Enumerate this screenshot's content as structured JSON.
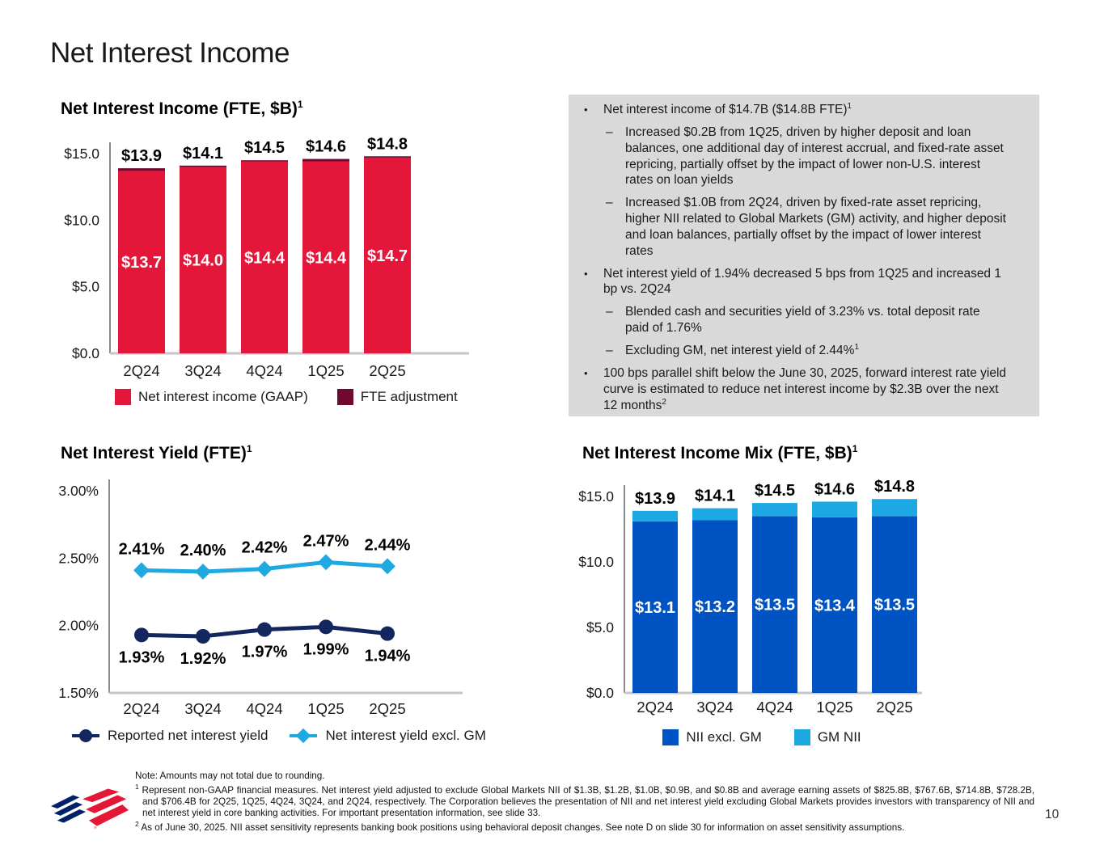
{
  "slide": {
    "title": "Net Interest Income"
  },
  "page_number": "10",
  "colors": {
    "gaap_red": "#E4173B",
    "fte_burgundy": "#70092F",
    "nii_excl_gm_blue": "#0053C2",
    "gm_nii_light_blue": "#1CA8E3",
    "reported_yield_navy": "#14265E",
    "yield_excl_gm_blue": "#20A8E0",
    "commentary_bg": "#D9D9D9",
    "logo_blue": "#012169",
    "logo_red": "#E31837"
  },
  "commentary": {
    "bullet_char": "•",
    "dash_char": "–",
    "items": [
      {
        "type": "bullet",
        "text": "Net interest income of $14.7B ($14.8B FTE)",
        "sup": "1"
      },
      {
        "type": "sub",
        "text": "Increased $0.2B from 1Q25, driven by higher deposit and loan balances, one additional day of interest accrual, and fixed-rate asset repricing, partially offset by the impact of lower non-U.S. interest rates on loan yields",
        "sup": ""
      },
      {
        "type": "sub",
        "text": "Increased $1.0B from 2Q24, driven by fixed-rate asset repricing, higher NII related to Global Markets (GM) activity, and higher deposit and loan balances, partially offset by the impact of lower interest rates",
        "sup": ""
      },
      {
        "type": "bullet",
        "text": "Net interest yield of 1.94% decreased 5 bps from 1Q25 and increased 1 bp vs. 2Q24",
        "sup": ""
      },
      {
        "type": "sub",
        "text": "Blended cash and securities yield of 3.23% vs. total deposit rate paid of 1.76%",
        "sup": ""
      },
      {
        "type": "sub",
        "text": "Excluding GM, net interest yield of 2.44%",
        "sup": "1"
      },
      {
        "type": "bullet",
        "text": "100 bps parallel shift below the June 30, 2025, forward interest rate yield curve is estimated to reduce net interest income by $2.3B over the next 12 months",
        "sup": "2"
      }
    ]
  },
  "footnotes": {
    "note": "Note: Amounts may not total due to rounding.",
    "fn1": {
      "sup": "1",
      "text": "Represent non-GAAP financial measures. Net interest yield adjusted to exclude Global Markets NII of $1.3B, $1.2B, $1.0B, $0.9B, and $0.8B and average earning assets of $825.8B, $767.6B, $714.8B, $728.2B, and $706.4B for 2Q25, 1Q25, 4Q24, 3Q24, and 2Q24, respectively. The Corporation believes the presentation of NII and net interest yield excluding Global Markets provides investors with transparency of NII and net interest yield in core banking activities. For important presentation information, see slide 33."
    },
    "fn2": {
      "sup": "2",
      "text": "As of June 30, 2025. NII asset sensitivity represents banking book positions using behavioral deposit changes. See note D on slide 30 for information on asset sensitivity assumptions."
    }
  },
  "chart_data": [
    {
      "id": "nii-fte",
      "type": "bar",
      "title": "Net Interest Income (FTE, $B)",
      "title_sup": "1",
      "categories": [
        "2Q24",
        "3Q24",
        "4Q24",
        "1Q25",
        "2Q25"
      ],
      "series": [
        {
          "name": "Net interest income (GAAP)",
          "color": "#E4173B",
          "values": [
            13.7,
            14.0,
            14.4,
            14.4,
            14.7
          ]
        },
        {
          "name": "FTE adjustment",
          "color": "#70092F",
          "values": [
            0.2,
            0.1,
            0.1,
            0.2,
            0.1
          ]
        }
      ],
      "totals": [
        13.9,
        14.1,
        14.5,
        14.6,
        14.8
      ],
      "total_labels": [
        "$13.9",
        "$14.1",
        "$14.5",
        "$14.6",
        "$14.8"
      ],
      "inner_labels": [
        "$13.7",
        "$14.0",
        "$14.4",
        "$14.4",
        "$14.7"
      ],
      "y_ticks": [
        {
          "label": "$15.0",
          "value": 15
        },
        {
          "label": "$10.0",
          "value": 10
        },
        {
          "label": "$5.0",
          "value": 5
        },
        {
          "label": "$0.0",
          "value": 0
        }
      ],
      "ylim": [
        0,
        15
      ],
      "grid": false,
      "legend_position": "bottom"
    },
    {
      "id": "niy-fte",
      "type": "line",
      "title": "Net Interest Yield (FTE)",
      "title_sup": "1",
      "categories": [
        "2Q24",
        "3Q24",
        "4Q24",
        "1Q25",
        "2Q25"
      ],
      "series": [
        {
          "name": "Reported net interest yield",
          "color": "#14265E",
          "marker": "circle",
          "label_position": "below",
          "values": [
            1.93,
            1.92,
            1.97,
            1.99,
            1.94
          ],
          "labels": [
            "1.93%",
            "1.92%",
            "1.97%",
            "1.99%",
            "1.94%"
          ]
        },
        {
          "name": "Net interest yield excl. GM",
          "color": "#20A8E0",
          "marker": "diamond",
          "label_position": "above",
          "values": [
            2.41,
            2.4,
            2.42,
            2.47,
            2.44
          ],
          "labels": [
            "2.41%",
            "2.40%",
            "2.42%",
            "2.47%",
            "2.44%"
          ]
        }
      ],
      "y_ticks": [
        {
          "label": "3.00%",
          "value": 3.0
        },
        {
          "label": "2.50%",
          "value": 2.5
        },
        {
          "label": "2.00%",
          "value": 2.0
        },
        {
          "label": "1.50%",
          "value": 1.5
        }
      ],
      "ylim": [
        1.5,
        3.0
      ],
      "grid": false,
      "legend_position": "bottom"
    },
    {
      "id": "nii-mix",
      "type": "bar",
      "title": "Net Interest Income Mix (FTE, $B)",
      "title_sup": "1",
      "categories": [
        "2Q24",
        "3Q24",
        "4Q24",
        "1Q25",
        "2Q25"
      ],
      "series": [
        {
          "name": "NII excl. GM",
          "color": "#0053C2",
          "values": [
            13.1,
            13.2,
            13.5,
            13.4,
            13.5
          ]
        },
        {
          "name": "GM NII",
          "color": "#1CA8E3",
          "values": [
            0.8,
            0.9,
            1.0,
            1.2,
            1.3
          ]
        }
      ],
      "totals": [
        13.9,
        14.1,
        14.5,
        14.6,
        14.8
      ],
      "total_labels": [
        "$13.9",
        "$14.1",
        "$14.5",
        "$14.6",
        "$14.8"
      ],
      "inner_labels": [
        "$13.1",
        "$13.2",
        "$13.5",
        "$13.4",
        "$13.5"
      ],
      "y_ticks": [
        {
          "label": "$15.0",
          "value": 15
        },
        {
          "label": "$10.0",
          "value": 10
        },
        {
          "label": "$5.0",
          "value": 5
        },
        {
          "label": "$0.0",
          "value": 0
        }
      ],
      "ylim": [
        0,
        15
      ],
      "grid": false,
      "legend_position": "bottom"
    }
  ]
}
